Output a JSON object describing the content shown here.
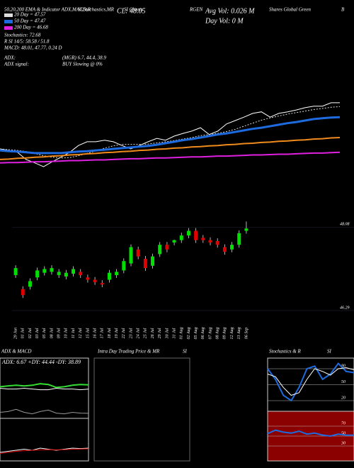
{
  "header": {
    "title_lines": [
      "50,20,200 EMA & Indicator ADX,MACD,R",
      "SI,Stochastics,MR",
      "SI Charts",
      "RGEN",
      "Shares Global Green",
      "B"
    ],
    "close": "CL: 48.05",
    "avg_vol": "Avg Vol: 0.026  M",
    "day_vol": "Day Vol: 0  M",
    "info": [
      "Stochastics: 72.68",
      "R",
      "SI 14/5: 58.58 / 51.8",
      "MACD: 48.01, 47.77, 0.24  D"
    ],
    "adx": [
      "ADX:",
      "(MGR) 6.7, 44.4, 38.9"
    ],
    "adx_signal": [
      "ADX  signal:",
      "BUY Slowing @ 0%"
    ]
  },
  "panels": {
    "intraday": "Intra Day Trading Price  & MR",
    "intraday2": "SI"
  },
  "chart_data": [
    {
      "type": "line",
      "ylim": [
        45.5,
        48.5
      ],
      "series": [
        {
          "color": "#ffffff",
          "values": [
            47.0,
            46.96,
            46.91,
            46.72,
            46.63,
            46.53,
            46.66,
            46.78,
            46.91,
            47.09,
            47.19,
            47.19,
            47.23,
            47.19,
            47.09,
            47.0,
            47.09,
            47.19,
            47.28,
            47.23,
            47.34,
            47.41,
            47.47,
            47.56,
            47.38,
            47.47,
            47.66,
            47.75,
            47.84,
            47.94,
            47.98,
            47.84,
            47.94,
            47.98,
            48.03,
            48.09,
            48.13,
            48.13,
            48.22,
            48.22
          ]
        },
        {
          "name": "20 Day = 47.57",
          "color": "#dddddd",
          "dash": true,
          "values": [
            47.0,
            46.98,
            46.96,
            46.93,
            46.88,
            46.82,
            46.78,
            46.76,
            46.77,
            46.82,
            46.88,
            46.95,
            47.02,
            47.08,
            47.12,
            47.12,
            47.12,
            47.13,
            47.16,
            47.19,
            47.22,
            47.26,
            47.3,
            47.35,
            47.38,
            47.41,
            47.46,
            47.52,
            47.6,
            47.68,
            47.76,
            47.82,
            47.87,
            47.92,
            47.96,
            48.0,
            48.04,
            48.07,
            48.1,
            48.12
          ]
        },
        {
          "name": "50 Day = 47.47",
          "color": "#1e6be0",
          "width": 3,
          "values": [
            46.96,
            46.94,
            46.93,
            46.91,
            46.89,
            46.89,
            46.89,
            46.89,
            46.91,
            46.93,
            46.94,
            46.96,
            46.98,
            47.0,
            47.02,
            47.04,
            47.06,
            47.08,
            47.11,
            47.15,
            47.19,
            47.23,
            47.26,
            47.3,
            47.34,
            47.38,
            47.41,
            47.45,
            47.49,
            47.53,
            47.56,
            47.6,
            47.64,
            47.68,
            47.71,
            47.75,
            47.79,
            47.81,
            47.83,
            47.84
          ]
        },
        {
          "color": "#f08a1c",
          "width": 2,
          "values": [
            46.72,
            46.73,
            46.75,
            46.76,
            46.78,
            46.79,
            46.81,
            46.82,
            46.84,
            46.85,
            46.87,
            46.88,
            46.9,
            46.91,
            46.93,
            46.94,
            46.96,
            46.97,
            46.99,
            47.0,
            47.02,
            47.03,
            47.05,
            47.06,
            47.08,
            47.09,
            47.11,
            47.12,
            47.14,
            47.15,
            47.17,
            47.18,
            47.2,
            47.21,
            47.23,
            47.24,
            47.26,
            47.27,
            47.29,
            47.3
          ]
        },
        {
          "name": "200 Day = 46.68",
          "color": "#e020e0",
          "width": 2,
          "values": [
            46.63,
            46.64,
            46.64,
            46.65,
            46.66,
            46.66,
            46.67,
            46.68,
            46.69,
            46.69,
            46.7,
            46.71,
            46.71,
            46.72,
            46.73,
            46.74,
            46.74,
            46.75,
            46.76,
            46.76,
            46.77,
            46.78,
            46.79,
            46.79,
            46.8,
            46.81,
            46.81,
            46.82,
            46.83,
            46.84,
            46.84,
            46.85,
            46.86,
            46.86,
            46.87,
            46.88,
            46.89,
            46.89,
            46.9,
            46.91
          ]
        }
      ]
    },
    {
      "type": "candlestick",
      "ylim": [
        46.03,
        48.16
      ],
      "yticks": [
        48.08,
        46.29
      ],
      "up_color": "#00e000",
      "down_color": "#e00000",
      "categories": [
        "29 Jun",
        "01 Jul",
        "02 Jul",
        "03 Jul",
        "05 Jul",
        "08 Jul",
        "09 Jul",
        "10 Jul",
        "11 Jul",
        "12 Jul",
        "15 Jul",
        "16 Jul",
        "17 Jul",
        "18 Jul",
        "19 Jul",
        "22 Jul",
        "23 Jul",
        "24 Jul",
        "25 Jul",
        "26 Jul",
        "29 Jul",
        "30 Jul",
        "31 Jul",
        "01 Aug",
        "02 Aug",
        "05 Aug",
        "06 Aug",
        "07 Aug",
        "08 Aug",
        "09 Aug",
        "12 Aug",
        "13 Aug",
        "06 Sep"
      ],
      "open": [
        47.05,
        46.75,
        46.8,
        47.0,
        47.1,
        47.12,
        47.05,
        47.02,
        47.08,
        47.12,
        47.0,
        46.95,
        46.88,
        46.95,
        47.05,
        47.15,
        47.3,
        47.6,
        47.4,
        47.25,
        47.5,
        47.7,
        47.75,
        47.8,
        47.9,
        48.0,
        47.85,
        47.8,
        47.78,
        47.65,
        47.6,
        47.7,
        48.0
      ],
      "close": [
        47.2,
        46.62,
        46.92,
        47.15,
        47.18,
        47.2,
        47.12,
        47.1,
        47.18,
        47.05,
        46.95,
        46.9,
        46.85,
        47.1,
        47.12,
        47.35,
        47.65,
        47.45,
        47.2,
        47.45,
        47.7,
        47.6,
        47.8,
        47.9,
        48.0,
        47.8,
        47.8,
        47.75,
        47.7,
        47.55,
        47.7,
        47.95,
        48.05
      ],
      "high": [
        47.26,
        46.81,
        46.98,
        47.21,
        47.24,
        47.26,
        47.18,
        47.16,
        47.24,
        47.18,
        47.06,
        47.01,
        46.94,
        47.16,
        47.18,
        47.41,
        47.71,
        47.66,
        47.46,
        47.51,
        47.76,
        47.76,
        47.81,
        47.96,
        48.06,
        48.06,
        47.91,
        47.86,
        47.84,
        47.71,
        47.76,
        48.01,
        48.2
      ],
      "low": [
        46.99,
        46.56,
        46.74,
        46.94,
        47.04,
        47.06,
        46.99,
        46.96,
        47.02,
        46.99,
        46.89,
        46.84,
        46.79,
        46.89,
        46.99,
        47.09,
        47.24,
        47.39,
        47.14,
        47.19,
        47.44,
        47.54,
        47.69,
        47.74,
        47.84,
        47.74,
        47.74,
        47.69,
        47.64,
        47.49,
        47.54,
        47.64,
        47.94
      ]
    },
    {
      "type": "line",
      "title": "ADX  & MACD",
      "label": "ADX: 6.67  +DY: 44.44  -DY: 38.89",
      "ylim": [
        0,
        80
      ],
      "series": [
        {
          "color": "#33dd33",
          "width": 2,
          "values": [
            42,
            43,
            44,
            43,
            44,
            46,
            45,
            41,
            42,
            44,
            45,
            44.44
          ]
        },
        {
          "color": "#ffffff",
          "values": [
            40,
            39,
            39,
            40,
            39,
            38,
            38,
            40,
            39,
            39,
            38,
            38.89
          ]
        },
        {
          "color": "#999999",
          "values": [
            8,
            9,
            12,
            8,
            6,
            9,
            11,
            7,
            6,
            8,
            7,
            6.67
          ]
        }
      ]
    },
    {
      "type": "line",
      "ylim": [
        -1,
        1
      ],
      "series": [
        {
          "color": "#ffffff",
          "values": [
            -0.6,
            -0.55,
            -0.5,
            -0.45,
            -0.5,
            -0.4,
            -0.45,
            -0.5,
            -0.45,
            -0.4,
            -0.42,
            -0.4
          ]
        },
        {
          "color": "#e00000",
          "values": [
            -0.65,
            -0.6,
            -0.55,
            -0.52,
            -0.5,
            -0.48,
            -0.47,
            -0.48,
            -0.47,
            -0.45,
            -0.44,
            -0.43
          ]
        }
      ]
    },
    {
      "type": "line",
      "title": "Stochastics & R",
      "title2": "SI",
      "ylim": [
        0,
        100
      ],
      "yticks": [
        80,
        50,
        20
      ],
      "series": [
        {
          "color": "#1e6be0",
          "width": 2,
          "values": [
            80,
            60,
            30,
            20,
            45,
            80,
            85,
            60,
            70,
            90,
            75,
            72.68
          ]
        },
        {
          "color": "#ffffff",
          "values": [
            70,
            65,
            45,
            30,
            35,
            60,
            80,
            75,
            68,
            80,
            82,
            78
          ]
        }
      ]
    },
    {
      "type": "line",
      "ylim": [
        0,
        100
      ],
      "yticks": [
        70,
        50,
        30
      ],
      "background": "#8b0000",
      "series": [
        {
          "color": "#1e6be0",
          "width": 2,
          "values": [
            55,
            62,
            58,
            56,
            60,
            54,
            56,
            52,
            50,
            54,
            52,
            51.8
          ]
        }
      ]
    }
  ]
}
